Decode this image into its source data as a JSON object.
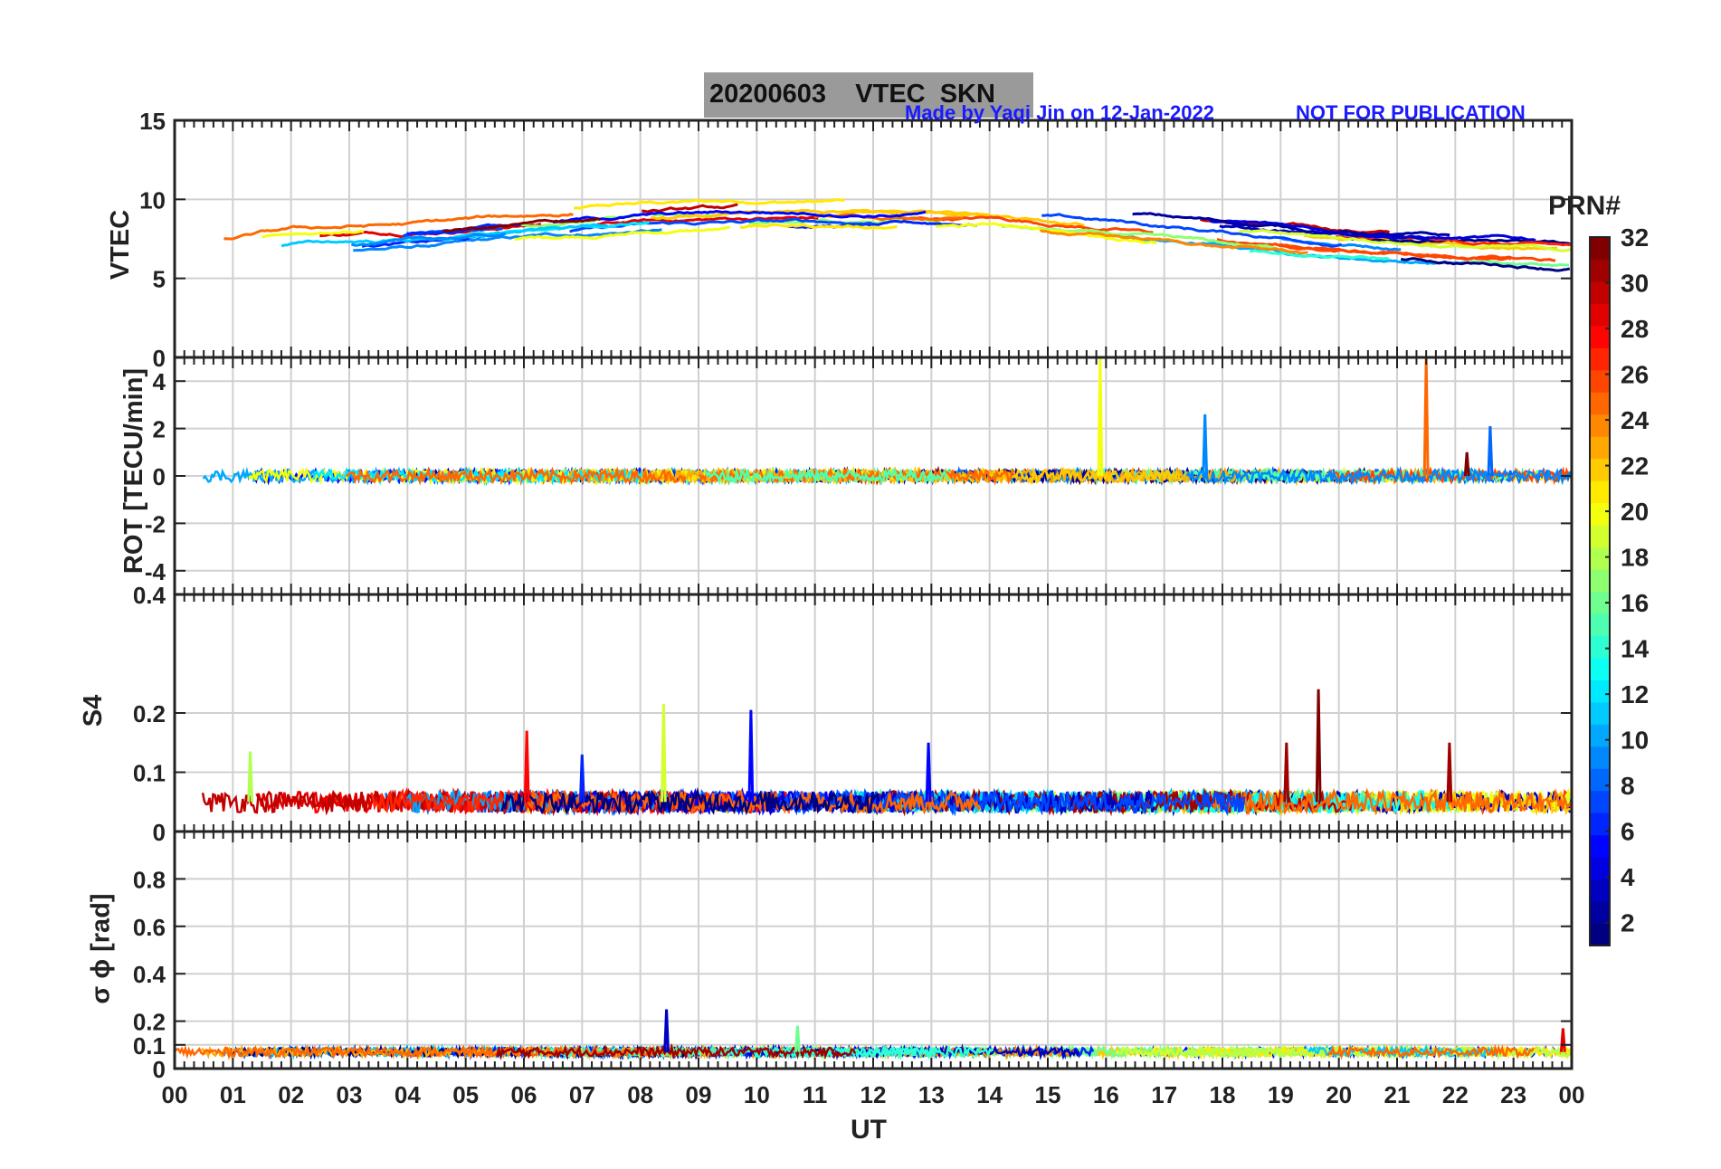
{
  "header": {
    "title": "20200603    VTEC  SKN",
    "credit": "Made by Yaqi Jin on 12-Jan-2022",
    "note": "NOT FOR PUBLICATION"
  },
  "colorbar": {
    "label": "PRN#",
    "ticks": [
      "2",
      "4",
      "6",
      "8",
      "10",
      "12",
      "14",
      "16",
      "18",
      "20",
      "22",
      "24",
      "26",
      "28",
      "30",
      "32"
    ],
    "range": [
      1,
      32
    ],
    "colormap": "jet"
  },
  "chart_data": [
    {
      "type": "line",
      "panel": "vtec",
      "ylabel": "VTEC",
      "ylim": [
        0,
        15
      ],
      "yticks": [
        "0",
        "5",
        "10",
        "15"
      ],
      "xlim": [
        0,
        24
      ],
      "grid": true,
      "series_note": "one line per satellite PRN 1-32, colored by PRN",
      "approx_profile": {
        "x": [
          0,
          2,
          4,
          6,
          8,
          10,
          12,
          14,
          16,
          18,
          20,
          22,
          24
        ],
        "y": [
          6.5,
          7.5,
          7.8,
          8.3,
          8.8,
          9.0,
          9.0,
          9.1,
          8.5,
          7.8,
          7.2,
          6.8,
          6.5
        ]
      }
    },
    {
      "type": "line",
      "panel": "rot",
      "ylabel": "ROT [TECU/min]",
      "ylim": [
        -5,
        5
      ],
      "yticks": [
        "-4",
        "-2",
        "0",
        "2",
        "4"
      ],
      "xlim": [
        0,
        24
      ],
      "grid": true,
      "spikes": [
        {
          "x": 15.9,
          "y": 5.0,
          "prn": 20
        },
        {
          "x": 17.7,
          "y": 2.6,
          "prn": 9
        },
        {
          "x": 21.5,
          "y": 5.0,
          "prn": 25
        },
        {
          "x": 22.6,
          "y": 2.1,
          "prn": 8
        },
        {
          "x": 22.2,
          "y": 1.0,
          "prn": 32
        }
      ]
    },
    {
      "type": "line",
      "panel": "s4",
      "ylabel": "S4",
      "ylim": [
        0,
        0.4
      ],
      "yticks": [
        "0",
        "0.1",
        "0.2",
        "0.4"
      ],
      "xlim": [
        0,
        24
      ],
      "grid": true,
      "baseline": 0.05,
      "spikes": [
        {
          "x": 6.05,
          "y": 0.17,
          "prn": 28
        },
        {
          "x": 8.4,
          "y": 0.215,
          "prn": 19
        },
        {
          "x": 9.9,
          "y": 0.205,
          "prn": 5
        },
        {
          "x": 19.65,
          "y": 0.24,
          "prn": 32
        },
        {
          "x": 19.1,
          "y": 0.15,
          "prn": 31
        },
        {
          "x": 21.9,
          "y": 0.15,
          "prn": 31
        },
        {
          "x": 12.95,
          "y": 0.15,
          "prn": 5
        },
        {
          "x": 7.0,
          "y": 0.13,
          "prn": 6
        },
        {
          "x": 1.3,
          "y": 0.135,
          "prn": 18
        }
      ]
    },
    {
      "type": "line",
      "panel": "sigma_phi",
      "ylabel": "σ ϕ [rad]",
      "ylim": [
        0,
        1
      ],
      "yticks": [
        "0",
        "0.1",
        "0.2",
        "0.4",
        "0.6",
        "0.8"
      ],
      "xlim": [
        0,
        24
      ],
      "grid": true,
      "baseline": 0.07,
      "spikes": [
        {
          "x": 8.45,
          "y": 0.25,
          "prn": 3
        },
        {
          "x": 10.7,
          "y": 0.18,
          "prn": 16
        },
        {
          "x": 23.85,
          "y": 0.17,
          "prn": 29
        }
      ]
    }
  ],
  "xaxis": {
    "label": "UT",
    "ticks": [
      "00",
      "01",
      "02",
      "03",
      "04",
      "05",
      "06",
      "07",
      "08",
      "09",
      "10",
      "11",
      "12",
      "13",
      "14",
      "15",
      "16",
      "17",
      "18",
      "19",
      "20",
      "21",
      "22",
      "23",
      "00"
    ]
  }
}
